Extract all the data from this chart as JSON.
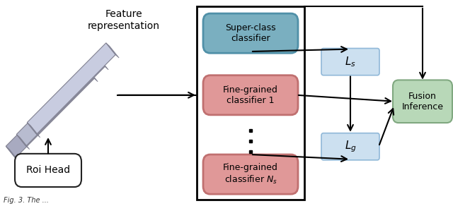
{
  "background_color": "#ffffff",
  "feature_text": "Feature\nrepresentation",
  "strip_color_face": "#b0b4cc",
  "strip_color_edge": "#808090",
  "strip_color_dark": "#8888a8",
  "roi_label": "Roi Head",
  "roi_fc": "#ffffff",
  "roi_ec": "#222222",
  "sc_label": "Super-class\nclassifier",
  "sc_fc": "#7aafc0",
  "sc_ec": "#5090a8",
  "fg1_label": "Fine-grained\nclassifier 1",
  "fg_fc": "#e09898",
  "fg_ec": "#c07070",
  "fgN_label": "Fine-grained\nclassifier $N_s$",
  "ls_label": "$L_s$",
  "ls_fc": "#cce0f0",
  "ls_ec": "#90b8d8",
  "lg_label": "$L_g$",
  "lg_fc": "#cce0f0",
  "lg_ec": "#90b8d8",
  "fusion_label": "Fusion\nInference",
  "fusion_fc": "#b8d8b8",
  "fusion_ec": "#80a880",
  "dots": "■ ■ ■"
}
